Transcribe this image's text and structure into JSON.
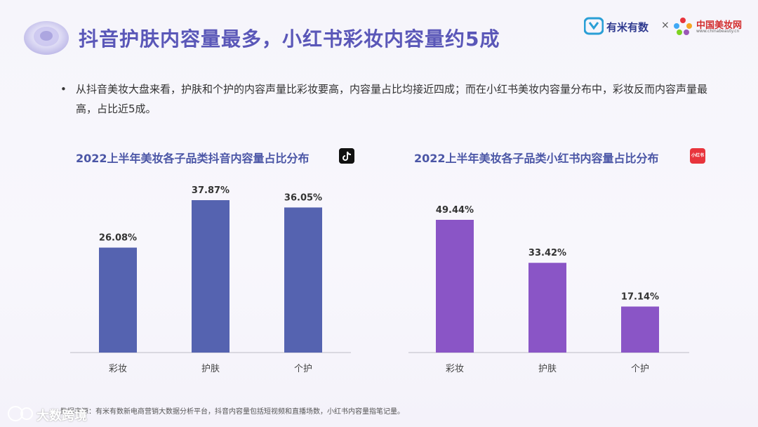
{
  "header": {
    "title": "抖音护肤内容量最多，小红书彩妆内容量约5成",
    "brand1": "有米有数",
    "brand_sep": "×",
    "brand2": "中国美妆网",
    "brand2_sub": "www.chinabeauty.cn"
  },
  "bullet": {
    "symbol": "•",
    "text": "从抖音美妆大盘来看，护肤和个护的内容声量比彩妆要高，内容量占比均接近四成；而在小红书美妆内容量分布中，彩妆反而内容声量最高，占比近5成。"
  },
  "icons": {
    "xhs_label": "小红书"
  },
  "colors": {
    "bar_douyin": "#5563b0",
    "bar_xhs": "#8a55c6",
    "title": "#5a57b8"
  },
  "chart_data": [
    {
      "type": "bar",
      "title": "2022上半年美妆各子品类抖音内容量占比分布",
      "categories": [
        "彩妆",
        "护肤",
        "个护"
      ],
      "values": [
        26.08,
        37.87,
        36.05
      ],
      "labels": [
        "26.08%",
        "37.87%",
        "36.05%"
      ],
      "unit": "%",
      "ylim": [
        0,
        40
      ],
      "xlabel": "",
      "ylabel": ""
    },
    {
      "type": "bar",
      "title": "2022上半年美妆各子品类小红书内容量占比分布",
      "categories": [
        "彩妆",
        "护肤",
        "个护"
      ],
      "values": [
        49.44,
        33.42,
        17.14
      ],
      "labels": [
        "49.44%",
        "33.42%",
        "17.14%"
      ],
      "unit": "%",
      "ylim": [
        0,
        50
      ],
      "xlabel": "",
      "ylabel": ""
    }
  ],
  "footer": {
    "text": "数据来源：有米有数新电商营销大数据分析平台，抖音内容量包括短视频和直播场数，小红书内容量指笔记量。",
    "watermark": "大数跨境"
  }
}
